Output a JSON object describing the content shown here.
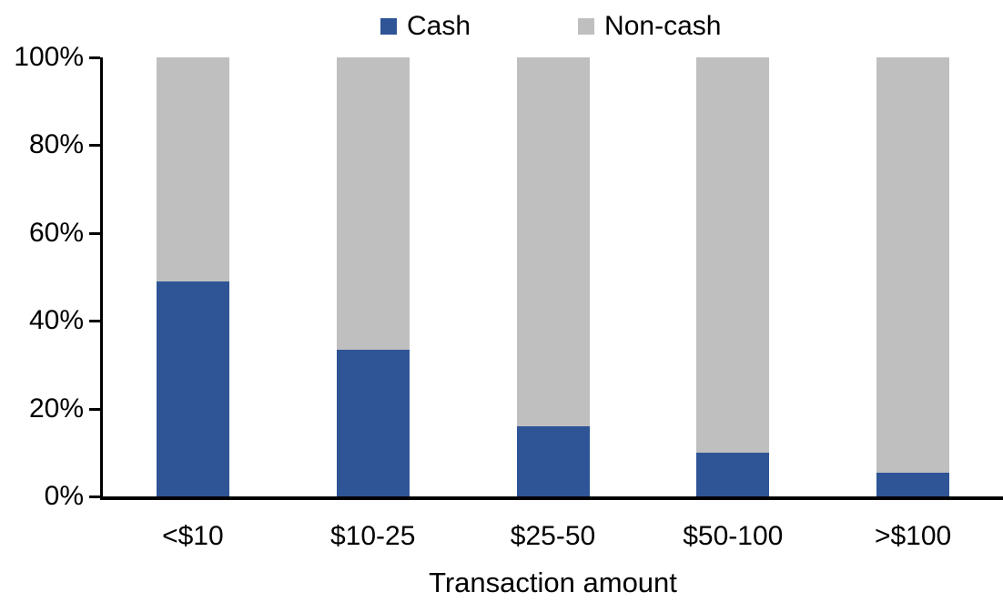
{
  "chart_data": {
    "type": "bar",
    "subtype": "stacked-100-percent",
    "title": "",
    "xlabel": "Transaction amount",
    "ylabel": "",
    "categories": [
      "<$10",
      "$10-25",
      "$25-50",
      "$50-100",
      ">$100"
    ],
    "series": [
      {
        "name": "Cash",
        "color": "#2F5597",
        "values": [
          49,
          33.5,
          16,
          10,
          5.5
        ]
      },
      {
        "name": "Non-cash",
        "color": "#BFBFBF",
        "values": [
          51,
          66.5,
          84,
          90,
          94.5
        ]
      }
    ],
    "ylim": [
      0,
      100
    ],
    "y_ticks": [
      "0%",
      "20%",
      "40%",
      "60%",
      "80%",
      "100%"
    ],
    "grid": false,
    "legend_position": "top-center",
    "axis_color": "#000000",
    "text_color": "#000000"
  }
}
